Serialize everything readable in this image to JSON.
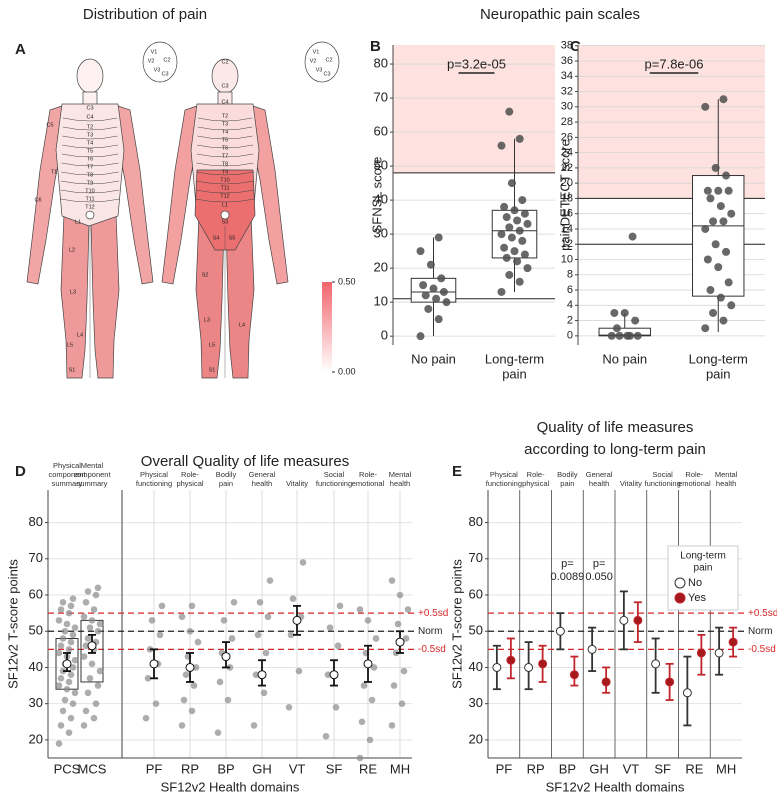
{
  "panel_a": {
    "letter": "A",
    "title": "Distribution of pain",
    "inset_labels": [
      "V1",
      "V2",
      "V3",
      "C2",
      "C3"
    ],
    "front_labels": [
      "C3",
      "C4",
      "T2",
      "T3",
      "T4",
      "T5",
      "T6",
      "T7",
      "T8",
      "T9",
      "T10",
      "T11",
      "T12",
      "L1",
      "L2",
      "L3",
      "L4",
      "L5",
      "S1",
      "C5",
      "C6",
      "T1"
    ],
    "back_labels": [
      "C2",
      "C3",
      "C4",
      "T2",
      "T3",
      "T4",
      "T5",
      "T6",
      "T7",
      "T8",
      "T9",
      "T10",
      "T11",
      "T12",
      "L1",
      "S3",
      "S4",
      "S5",
      "S2",
      "L3",
      "L4",
      "L5",
      "S1"
    ],
    "colorbar_lim": [
      0,
      0.5
    ],
    "colorbar_ticks": [
      {
        "value": 0,
        "label": "0.00"
      },
      {
        "value": 0.5,
        "label": "0.50"
      }
    ]
  },
  "scales_title": "Neuropathic pain scales",
  "chart_data": [
    {
      "type": "box",
      "letter": "B",
      "y_label": "SFNSL score",
      "category_lines": [
        [
          "No pain"
        ],
        [
          "Long-term",
          "pain"
        ]
      ],
      "ylim": [
        -2.6,
        85.6
      ],
      "yticks": [
        0,
        10,
        20,
        30,
        40,
        50,
        60,
        70,
        80
      ],
      "thresholds": [
        11,
        48
      ],
      "shade_from": 48,
      "p_label": "p=3.2e-05",
      "whisker_low": [
        0,
        13
      ],
      "q1": [
        10,
        23
      ],
      "median": [
        13,
        31
      ],
      "q3": [
        17,
        37
      ],
      "whisker_high": [
        29,
        58
      ],
      "points": [
        [
          0,
          5,
          8,
          10,
          11,
          12,
          13,
          14,
          15,
          17,
          21,
          25,
          29
        ],
        [
          13,
          16,
          18,
          20,
          22,
          23,
          24,
          25,
          26,
          28,
          29,
          30,
          31,
          32,
          33,
          34,
          35,
          36,
          37,
          38,
          40,
          45,
          56,
          58,
          66
        ]
      ],
      "point_color": "#4d4d4d",
      "shade_color": "#fde2df"
    },
    {
      "type": "box",
      "letter": "C",
      "y_label": "painDETECT score",
      "category_lines": [
        [
          "No pain"
        ],
        [
          "Long-term",
          "pain"
        ]
      ],
      "ylim": [
        -1.2,
        38.1
      ],
      "yticks": [
        0,
        2,
        4,
        6,
        8,
        10,
        12,
        14,
        16,
        18,
        20,
        22,
        24,
        26,
        28,
        30,
        32,
        34,
        36,
        38
      ],
      "thresholds": [
        12,
        18
      ],
      "shade_from": 18,
      "p_label": "p=7.8e-06",
      "whisker_low": [
        0,
        0.5
      ],
      "q1": [
        0,
        5.2
      ],
      "median": [
        0.1,
        14.4
      ],
      "q3": [
        1,
        21
      ],
      "whisker_high": [
        3,
        31
      ],
      "points": [
        [
          0,
          0,
          0,
          0,
          0,
          1,
          2,
          3,
          3,
          13
        ],
        [
          1,
          2,
          3,
          4,
          5,
          6,
          7,
          9,
          10,
          11,
          12,
          14,
          15,
          15,
          16,
          17,
          18,
          19,
          19,
          19,
          21,
          22,
          30,
          31
        ]
      ],
      "point_color": "#4d4d4d",
      "shade_color": "#fde2df"
    },
    {
      "type": "dot-ci",
      "letter": "D",
      "title": "Overall Quality of life measures",
      "y_label": "SF12v2 T-score points",
      "x_label": "SF12v2 Health domains",
      "categories": [
        "PCS",
        "MCS",
        "PF",
        "RP",
        "BP",
        "GH",
        "VT",
        "SF",
        "RE",
        "MH"
      ],
      "top_labels": [
        [
          "Physical",
          "component",
          "summary"
        ],
        [
          "Mental",
          "component",
          "summary"
        ],
        [
          "Physical",
          "functioning"
        ],
        [
          "Role-",
          "physical"
        ],
        [
          "Bodily",
          "pain"
        ],
        [
          "General",
          "health"
        ],
        [
          "Vitality"
        ],
        [
          "Social",
          "functioning"
        ],
        [
          "Role-",
          "emotional"
        ],
        [
          "Mental",
          "health"
        ]
      ],
      "ylim": [
        15,
        89
      ],
      "yticks": [
        20,
        30,
        40,
        50,
        60,
        70,
        80
      ],
      "means": [
        41,
        46,
        41,
        40,
        43,
        38,
        53,
        38,
        41,
        47
      ],
      "ci_low": [
        39,
        44,
        37,
        36,
        40,
        35,
        49,
        35,
        36,
        44
      ],
      "ci_high": [
        44,
        49,
        45,
        44,
        47,
        42,
        57,
        42,
        46,
        50
      ],
      "box_q1": [
        34,
        36,
        null,
        null,
        null,
        null,
        null,
        null,
        null,
        null
      ],
      "box_q3": [
        48,
        53,
        null,
        null,
        null,
        null,
        null,
        null,
        null,
        null
      ],
      "points": [
        [
          19,
          22,
          24,
          26,
          28,
          30,
          31,
          33,
          34,
          35,
          36,
          37,
          38,
          39,
          40,
          41,
          42,
          43,
          44,
          45,
          46,
          47,
          48,
          49,
          50,
          51,
          52,
          53,
          55,
          56,
          57,
          58,
          59
        ],
        [
          24,
          26,
          28,
          30,
          33,
          35,
          37,
          39,
          41,
          43,
          45,
          46,
          47,
          48,
          50,
          51,
          52,
          53,
          54,
          56,
          58,
          60,
          61,
          62
        ],
        [
          26,
          30,
          37,
          41,
          45,
          49,
          53,
          57
        ],
        [
          24,
          28,
          31,
          35,
          38,
          40,
          43,
          47,
          50,
          54,
          57
        ],
        [
          22,
          31,
          36,
          40,
          44,
          48,
          53,
          58
        ],
        [
          24,
          33,
          38,
          44,
          49,
          54,
          58,
          64
        ],
        [
          29,
          39,
          49,
          54,
          59,
          69
        ],
        [
          21,
          29,
          38,
          46,
          51,
          57
        ],
        [
          15,
          20,
          25,
          31,
          35,
          40,
          44,
          48,
          53,
          56
        ],
        [
          24,
          30,
          35,
          39,
          44,
          48,
          52,
          56,
          60,
          64
        ]
      ],
      "reference_lines": [
        {
          "value": 55,
          "label": "+0.5sd",
          "color": "#d62728"
        },
        {
          "value": 50,
          "label": "Norm",
          "color": "#222222"
        },
        {
          "value": 45,
          "label": "-0.5sd",
          "color": "#d62728"
        }
      ]
    },
    {
      "type": "grouped-dot-ci",
      "letter": "E",
      "title_lines": [
        "Quality of life measures",
        "according to long-term pain"
      ],
      "y_label": "SF12v2 T-score points",
      "x_label": "SF12v2 Health domains",
      "categories": [
        "PF",
        "RP",
        "BP",
        "GH",
        "VT",
        "SF",
        "RE",
        "MH"
      ],
      "top_labels": [
        [
          "Physical",
          "functioning"
        ],
        [
          "Role-",
          "physical"
        ],
        [
          "Bodily",
          "pain"
        ],
        [
          "General",
          "health"
        ],
        [
          "Vitality"
        ],
        [
          "Social",
          "functioning"
        ],
        [
          "Role-",
          "emotional"
        ],
        [
          "Mental",
          "health"
        ]
      ],
      "ylim": [
        15,
        89
      ],
      "yticks": [
        20,
        30,
        40,
        50,
        60,
        70,
        80
      ],
      "legend_title_lines": [
        "Long-term",
        "pain"
      ],
      "legend": "top-right",
      "series": [
        {
          "name": "No",
          "color": "#ffffff",
          "bar_color": "#333333",
          "values": [
            40,
            40,
            50,
            45,
            53,
            41,
            33,
            44
          ],
          "ci_low": [
            34,
            34,
            45,
            39,
            45,
            33,
            24,
            38
          ],
          "ci_high": [
            46,
            47,
            55,
            51,
            61,
            48,
            43,
            51
          ]
        },
        {
          "name": "Yes",
          "color": "#a5191c",
          "bar_color": "#c0272d",
          "values": [
            42,
            41,
            38,
            36,
            53,
            36,
            44,
            47
          ],
          "ci_low": [
            37,
            36,
            35,
            33,
            47,
            31,
            38,
            43
          ],
          "ci_high": [
            48,
            46,
            43,
            40,
            58,
            41,
            49,
            51
          ]
        }
      ],
      "annotations": [
        {
          "category": "BP",
          "y": 65,
          "lines": [
            "p=",
            "0.0089"
          ]
        },
        {
          "category": "GH",
          "y": 65,
          "lines": [
            "p=",
            "0.050"
          ]
        }
      ],
      "reference_lines": [
        {
          "value": 55,
          "label": "+0.5sd",
          "color": "#d62728"
        },
        {
          "value": 50,
          "label": "Norm",
          "color": "#222222"
        },
        {
          "value": 45,
          "label": "-0.5sd",
          "color": "#d62728"
        }
      ]
    }
  ]
}
